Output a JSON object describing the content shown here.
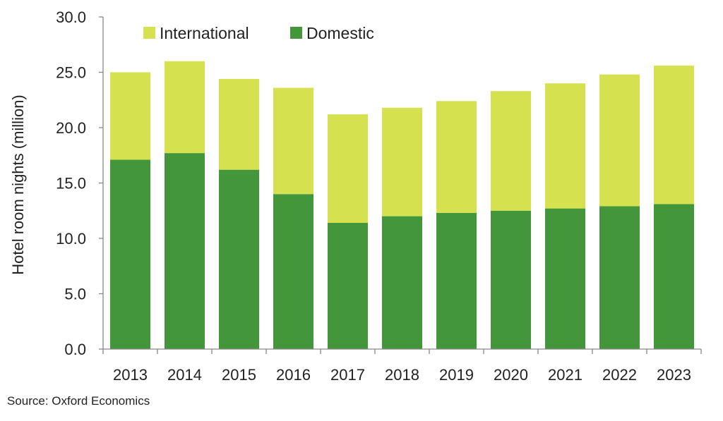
{
  "chart_data": {
    "type": "bar",
    "stacked": true,
    "categories": [
      "2013",
      "2014",
      "2015",
      "2016",
      "2017",
      "2018",
      "2019",
      "2020",
      "2021",
      "2022",
      "2023"
    ],
    "series": [
      {
        "name": "Domestic",
        "color": "#43963a",
        "values": [
          17.1,
          17.7,
          16.2,
          14.0,
          11.4,
          12.0,
          12.3,
          12.5,
          12.7,
          12.9,
          13.1
        ]
      },
      {
        "name": "International",
        "color": "#d5e14f",
        "values": [
          7.9,
          8.3,
          8.2,
          9.6,
          9.8,
          9.8,
          10.1,
          10.8,
          11.3,
          11.9,
          12.5
        ]
      }
    ],
    "legend_order": [
      "International",
      "Domestic"
    ],
    "legend_position": "top-left",
    "ylabel": "Hotel room nights (million)",
    "xlabel": "",
    "ylim": [
      0,
      30
    ],
    "yticks": [
      "0.0",
      "5.0",
      "10.0",
      "15.0",
      "20.0",
      "25.0",
      "30.0"
    ],
    "grid": false
  },
  "source": "Source:  Oxford Economics"
}
